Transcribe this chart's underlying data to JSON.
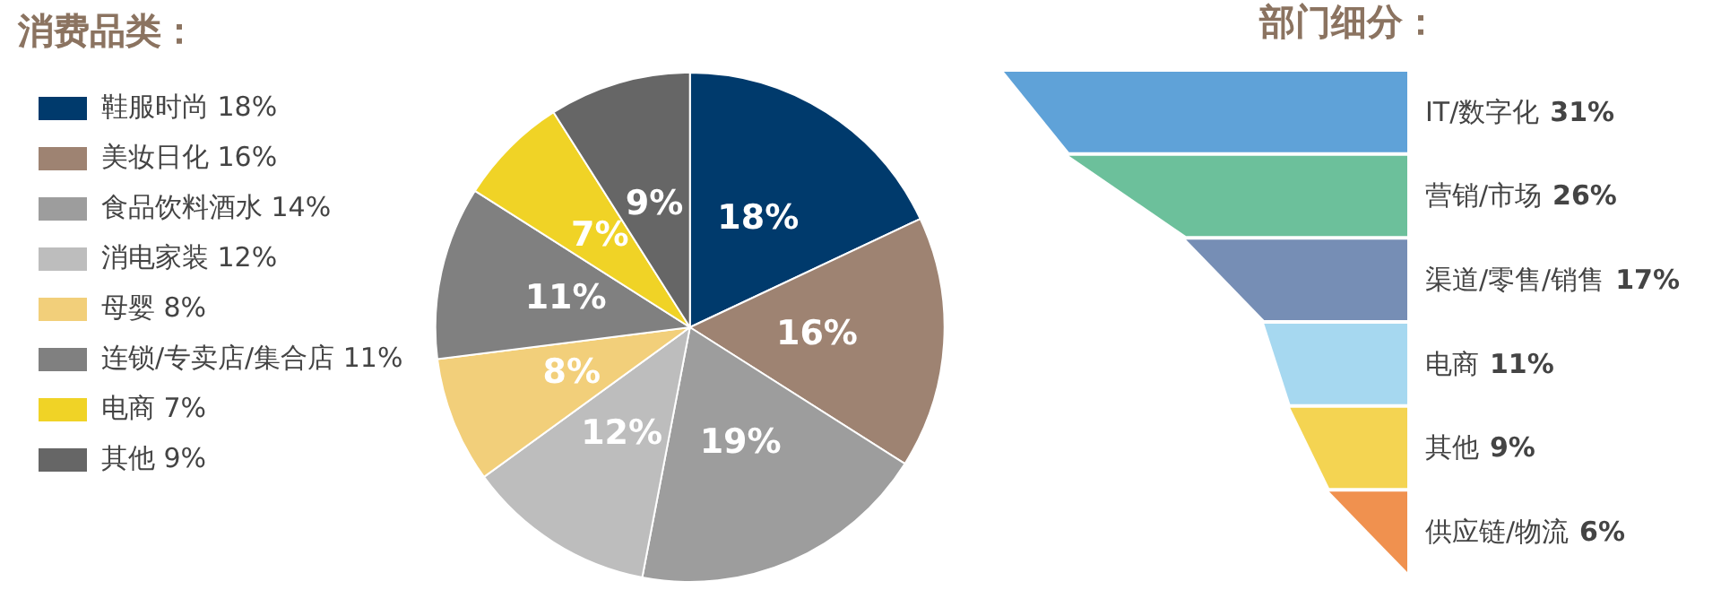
{
  "chart_data": [
    {
      "type": "pie",
      "title": "消费品类：",
      "legend": "left",
      "categories": [
        "鞋服时尚 18%",
        "美妆日化 16%",
        "食品饮料酒水 14%",
        "消电家装 12%",
        "母婴 8%",
        "连锁/专卖店/集合店 11%",
        "电商 7%",
        "其他 9%"
      ],
      "values": [
        18,
        16,
        19,
        12,
        8,
        11,
        7,
        9
      ],
      "value_labels": [
        "18%",
        "16%",
        "19%",
        "12%",
        "8%",
        "11%",
        "7%",
        "9%"
      ],
      "colors": [
        "#003a6c",
        "#9e8372",
        "#9d9d9d",
        "#bdbdbd",
        "#f2cf7a",
        "#808080",
        "#f0d326",
        "#666666"
      ]
    },
    {
      "type": "other",
      "title": "部门细分：",
      "categories": [
        "IT/数字化",
        "营销/市场",
        "渠道/零售/销售",
        "电商",
        "其他",
        "供应链/物流"
      ],
      "values": [
        31,
        26,
        17,
        11,
        9,
        6
      ],
      "value_labels": [
        "31%",
        "26%",
        "17%",
        "11%",
        "9%",
        "6%"
      ],
      "colors": [
        "#5fa2d8",
        "#6cc09b",
        "#768eb5",
        "#a6d8f0",
        "#f4d452",
        "#f0914f"
      ]
    }
  ]
}
